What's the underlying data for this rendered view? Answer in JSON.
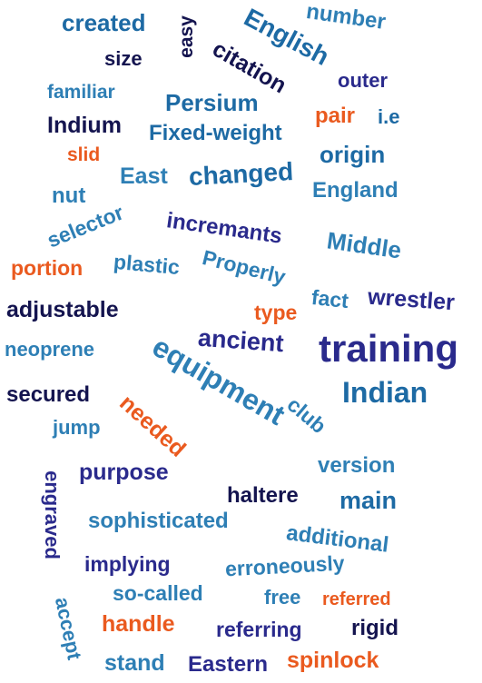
{
  "words": [
    "created",
    "easy",
    "number",
    "English",
    "size",
    "citation",
    "outer",
    "familiar",
    "Persium",
    "pair",
    "i.e",
    "Indium",
    "Fixed-weight",
    "slid",
    "origin",
    "East",
    "changed",
    "England",
    "nut",
    "selector",
    "incremants",
    "Middle",
    "portion",
    "plastic",
    "Properly",
    "fact",
    "wrestler",
    "adjustable",
    "type",
    "ancient",
    "training",
    "neoprene",
    "equipment",
    "Indian",
    "secured",
    "club",
    "needed",
    "jump",
    "version",
    "purpose",
    "engraved",
    "haltere",
    "main",
    "sophisticated",
    "additional",
    "implying",
    "erroneously",
    "so-called",
    "free",
    "referred",
    "accept",
    "handle",
    "referring",
    "rigid",
    "stand",
    "Eastern",
    "spinlock"
  ],
  "colors": {
    "navy": "#14144f",
    "indigo": "#2a2a8c",
    "blue": "#1d6aa4",
    "steel": "#2e7fb5",
    "orange": "#ea5a1f"
  }
}
